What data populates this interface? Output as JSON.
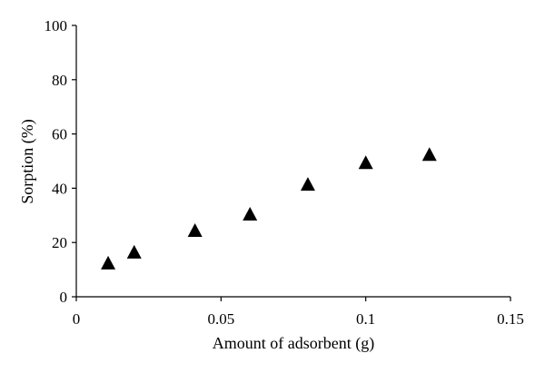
{
  "chart_data": {
    "type": "scatter",
    "title": "",
    "xlabel": "Amount of adsorbent (g)",
    "ylabel": "Sorption (%)",
    "xlim": [
      0,
      0.15
    ],
    "ylim": [
      0,
      100
    ],
    "x_ticks": [
      0,
      0.05,
      0.1,
      0.15
    ],
    "x_tick_labels": [
      "0",
      "0.05",
      "0.1",
      "0.15"
    ],
    "y_ticks": [
      0,
      20,
      40,
      60,
      80,
      100
    ],
    "y_tick_labels": [
      "0",
      "20",
      "40",
      "60",
      "80",
      "100"
    ],
    "grid": false,
    "legend": "none",
    "marker": "triangle",
    "marker_color": "#000000",
    "series": [
      {
        "x": [
          0.011,
          0.02,
          0.041,
          0.06,
          0.08,
          0.1,
          0.122
        ],
        "y": [
          12,
          16,
          24,
          30,
          41,
          49,
          52
        ]
      }
    ]
  }
}
